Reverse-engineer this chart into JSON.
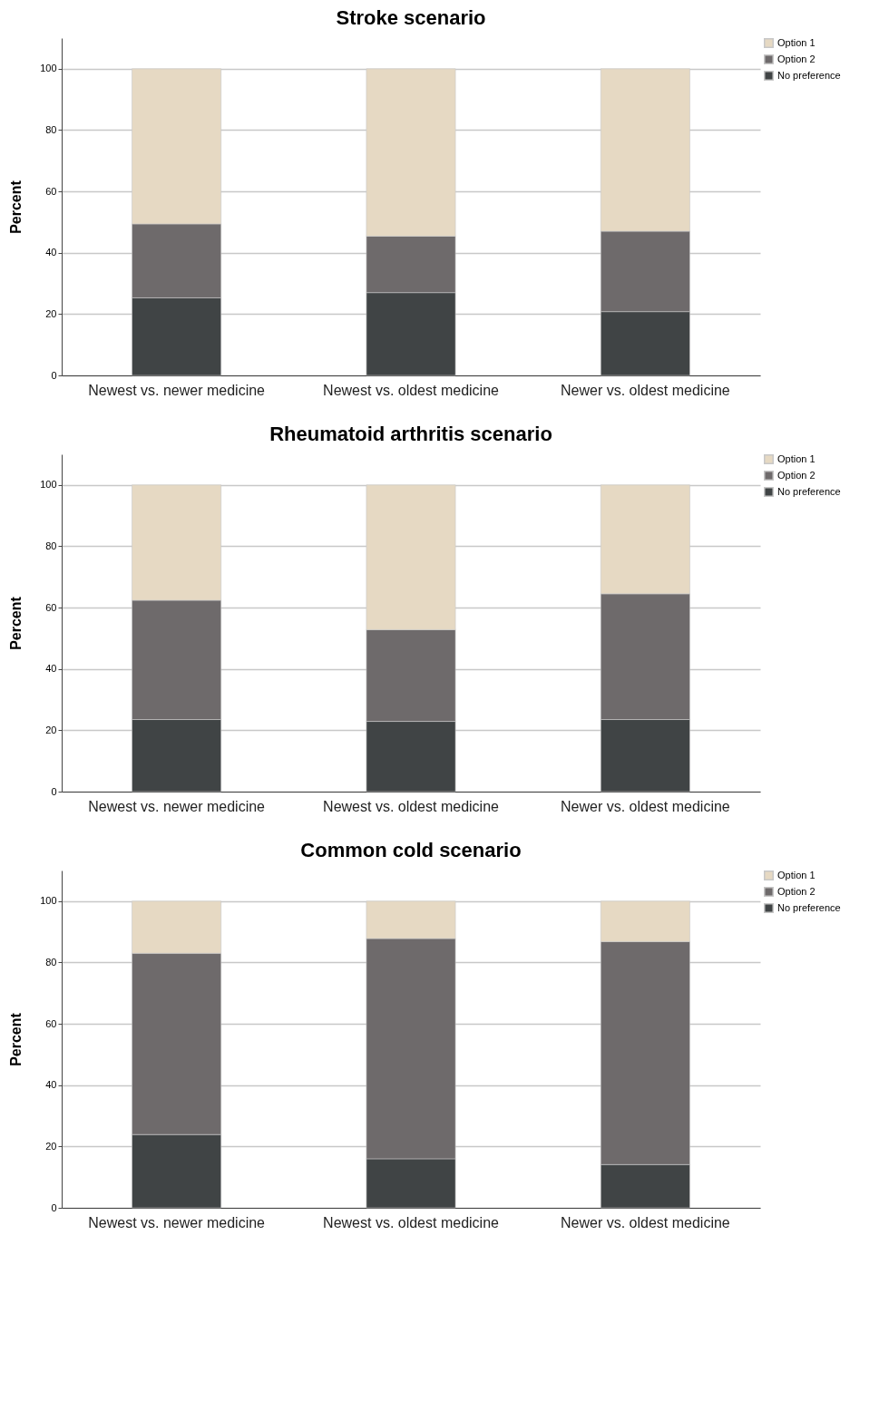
{
  "chart_data": [
    {
      "type": "bar",
      "title": "Stroke scenario",
      "ylabel": "Percent",
      "stacked": true,
      "categories": [
        "Newest vs. newer medicine",
        "Newest vs. oldest medicine",
        "Newer vs. oldest medicine"
      ],
      "series": [
        {
          "name": "No preference",
          "color": "#404445",
          "values": [
            25.3,
            27.0,
            20.8
          ]
        },
        {
          "name": "Option 2",
          "color": "#6e6a6b",
          "values": [
            24.1,
            18.4,
            26.2
          ]
        },
        {
          "name": "Option 1",
          "color": "#e6d9c3",
          "values": [
            50.6,
            54.6,
            53.0
          ]
        }
      ],
      "ylim": [
        0,
        110
      ],
      "yticks": [
        0,
        20,
        40,
        60,
        80,
        100
      ],
      "grid": "y",
      "legend": "top right"
    },
    {
      "type": "bar",
      "title": "Rheumatoid arthritis scenario",
      "ylabel": "Percent",
      "stacked": true,
      "categories": [
        "Newest vs. newer medicine",
        "Newest vs. oldest medicine",
        "Newer vs. oldest medicine"
      ],
      "series": [
        {
          "name": "No preference",
          "color": "#404445",
          "values": [
            23.5,
            22.9,
            23.5
          ]
        },
        {
          "name": "Option 2",
          "color": "#6e6a6b",
          "values": [
            38.9,
            29.9,
            41.0
          ]
        },
        {
          "name": "Option 1",
          "color": "#e6d9c3",
          "values": [
            37.6,
            47.2,
            35.5
          ]
        }
      ],
      "ylim": [
        0,
        110
      ],
      "yticks": [
        0,
        20,
        40,
        60,
        80,
        100
      ],
      "grid": "y",
      "legend": "top right"
    },
    {
      "type": "bar",
      "title": "Common cold scenario",
      "ylabel": "Percent",
      "stacked": true,
      "categories": [
        "Newest vs. newer medicine",
        "Newest vs. oldest medicine",
        "Newer vs. oldest medicine"
      ],
      "series": [
        {
          "name": "No preference",
          "color": "#404445",
          "values": [
            23.9,
            16.0,
            14.1
          ]
        },
        {
          "name": "Option 2",
          "color": "#6e6a6b",
          "values": [
            59.1,
            71.8,
            72.7
          ]
        },
        {
          "name": "Option 1",
          "color": "#e6d9c3",
          "values": [
            17.0,
            12.2,
            13.2
          ]
        }
      ],
      "ylim": [
        0,
        110
      ],
      "yticks": [
        0,
        20,
        40,
        60,
        80,
        100
      ],
      "grid": "y",
      "legend": "top right"
    }
  ]
}
